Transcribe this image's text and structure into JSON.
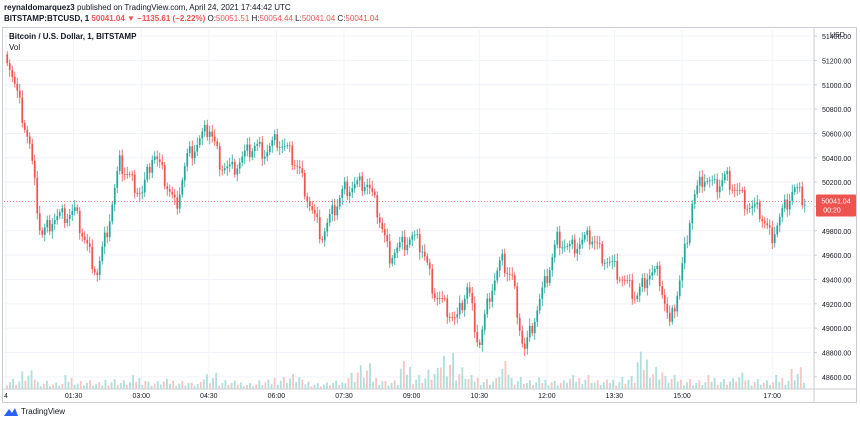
{
  "header": {
    "author": "reynaldomarquez3",
    "published_text": "published on TradingView.com, April 24, 2021 17:44:42 UTC",
    "symbol_interval": "BITSTAMP:BTCUSD, 1",
    "last_price": "50041.04",
    "change": "▼ −1135.61 (−2.22%)",
    "o_label": "O:",
    "o_value": "50051.51",
    "h_label": "H:",
    "h_value": "50054.44",
    "l_label": "L:",
    "l_value": "50041.04",
    "c_label": "C:",
    "c_value": "50041.04"
  },
  "legend": {
    "title": "Bitcoin / U.S. Dollar, 1, BITSTAMP",
    "volume": "Vol"
  },
  "footer": {
    "brand": "TradingView",
    "logo_icon": "tradingview-logo-icon"
  },
  "colors": {
    "up": "#26a69a",
    "down": "#ef5350",
    "vol_up": "#b2dfdb",
    "vol_down": "#f7c5c4",
    "grid": "#f0f3fa",
    "price_line": "#ef5350"
  },
  "chart_data": {
    "type": "line",
    "series": [
      {
        "name": "BITSTAMP:BTCUSD",
        "x": [
          "00:00",
          "00:30",
          "00:45",
          "01:00",
          "01:30",
          "02:00",
          "02:15",
          "02:30",
          "03:00",
          "03:15",
          "03:45",
          "04:00",
          "04:30",
          "04:45",
          "05:00",
          "05:30",
          "05:45",
          "06:00",
          "06:15",
          "06:30",
          "06:45",
          "07:00",
          "07:15",
          "07:30",
          "08:00",
          "08:15",
          "08:30",
          "09:00",
          "09:15",
          "09:30",
          "10:00",
          "10:15",
          "10:30",
          "10:45",
          "11:00",
          "11:15",
          "11:30",
          "12:00",
          "12:15",
          "12:30",
          "13:00",
          "13:15",
          "13:30",
          "14:00",
          "14:15",
          "14:30",
          "14:45",
          "15:00",
          "15:15",
          "15:30",
          "15:45",
          "16:00",
          "16:30",
          "16:45",
          "17:00",
          "17:15",
          "17:30",
          "17:45"
        ],
        "values": [
          51250,
          50500,
          49750,
          49900,
          49950,
          49450,
          49850,
          50350,
          50100,
          50450,
          50000,
          50400,
          50650,
          50350,
          50300,
          50500,
          50450,
          50550,
          50450,
          50300,
          50000,
          49750,
          49950,
          50150,
          50200,
          49950,
          49600,
          49750,
          49650,
          49300,
          49050,
          49350,
          48850,
          49300,
          49550,
          49400,
          48800,
          49400,
          49750,
          49650,
          49750,
          49600,
          49500,
          49250,
          49450,
          49450,
          49000,
          49450,
          50050,
          50250,
          50150,
          50250,
          50000,
          49950,
          49750,
          49950,
          50150,
          50041
        ]
      }
    ],
    "x_ticks": [
      "4",
      "01:30",
      "03:00",
      "04:30",
      "06:00",
      "07:30",
      "09:00",
      "10:30",
      "12:00",
      "13:30",
      "15:00",
      "17:00"
    ],
    "y_ticks": [
      "51400.00",
      "51200.00",
      "51000.00",
      "50800.00",
      "50600.00",
      "50400.00",
      "50200.00",
      "50000.00",
      "49800.00",
      "49600.00",
      "49400.00",
      "49200.00",
      "49000.00",
      "48800.00",
      "48600.00"
    ],
    "ylim": [
      48500,
      51450
    ],
    "y_axis_title": "USD",
    "last_price_label": "50041.04",
    "countdown_label": "00:20",
    "volume": {
      "description": "volume bars along bottom, relative heights 0-1",
      "values": [
        0.25,
        0.4,
        0.2,
        0.15,
        0.3,
        0.2,
        0.15,
        0.25,
        0.2,
        0.3,
        0.18,
        0.22,
        0.2,
        0.15,
        0.4,
        0.2,
        0.18,
        0.15,
        0.2,
        0.3,
        0.35,
        0.2,
        0.15,
        0.18,
        0.4,
        0.55,
        0.3,
        0.2,
        0.6,
        0.35,
        0.45,
        0.9,
        0.5,
        0.3,
        0.25,
        0.6,
        0.3,
        0.2,
        0.25,
        0.2,
        0.3,
        0.35,
        0.2,
        0.25,
        0.3,
        0.8,
        0.55,
        0.3,
        0.25,
        0.2,
        0.3,
        0.25,
        0.35,
        0.25,
        0.2,
        0.3,
        0.5,
        0.3
      ]
    },
    "grid": true,
    "legend_position": "top-left"
  }
}
